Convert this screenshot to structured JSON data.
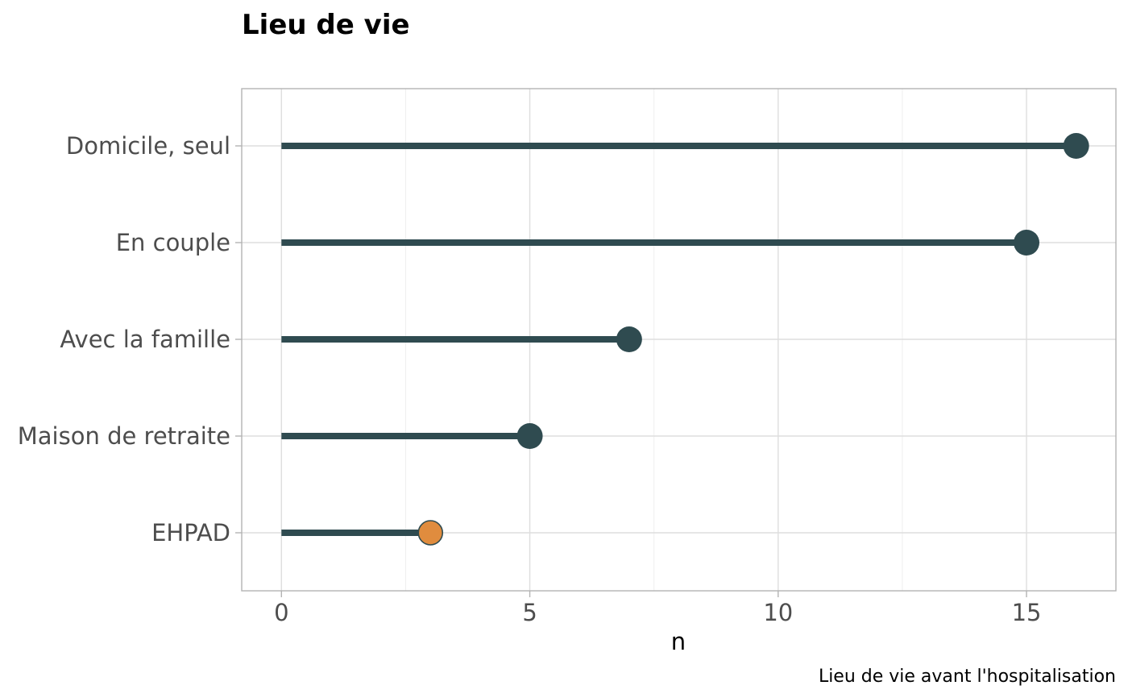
{
  "chart_data": {
    "type": "lollipop",
    "title": "Lieu de vie",
    "xlabel": "n",
    "ylabel": "",
    "caption": "Lieu de vie avant l'hospitalisation",
    "xlim": [
      -0.8,
      16.8
    ],
    "x_ticks": [
      0,
      5,
      10,
      15
    ],
    "x_tick_labels": [
      "0",
      "5",
      "10",
      "15"
    ],
    "grid": true,
    "legend": "none",
    "categories": [
      "Domicile, seul",
      "En couple",
      "Avec la famille",
      "Maison de retraite ",
      "EHPAD"
    ],
    "values": [
      16,
      15,
      7,
      5,
      3
    ],
    "highlight": [
      false,
      false,
      false,
      false,
      true
    ],
    "colors": {
      "segment": "#2f4b50",
      "point": "#2f4b50",
      "highlight_point": "#e08c3e",
      "highlight_stroke": "#2f4b50"
    }
  }
}
